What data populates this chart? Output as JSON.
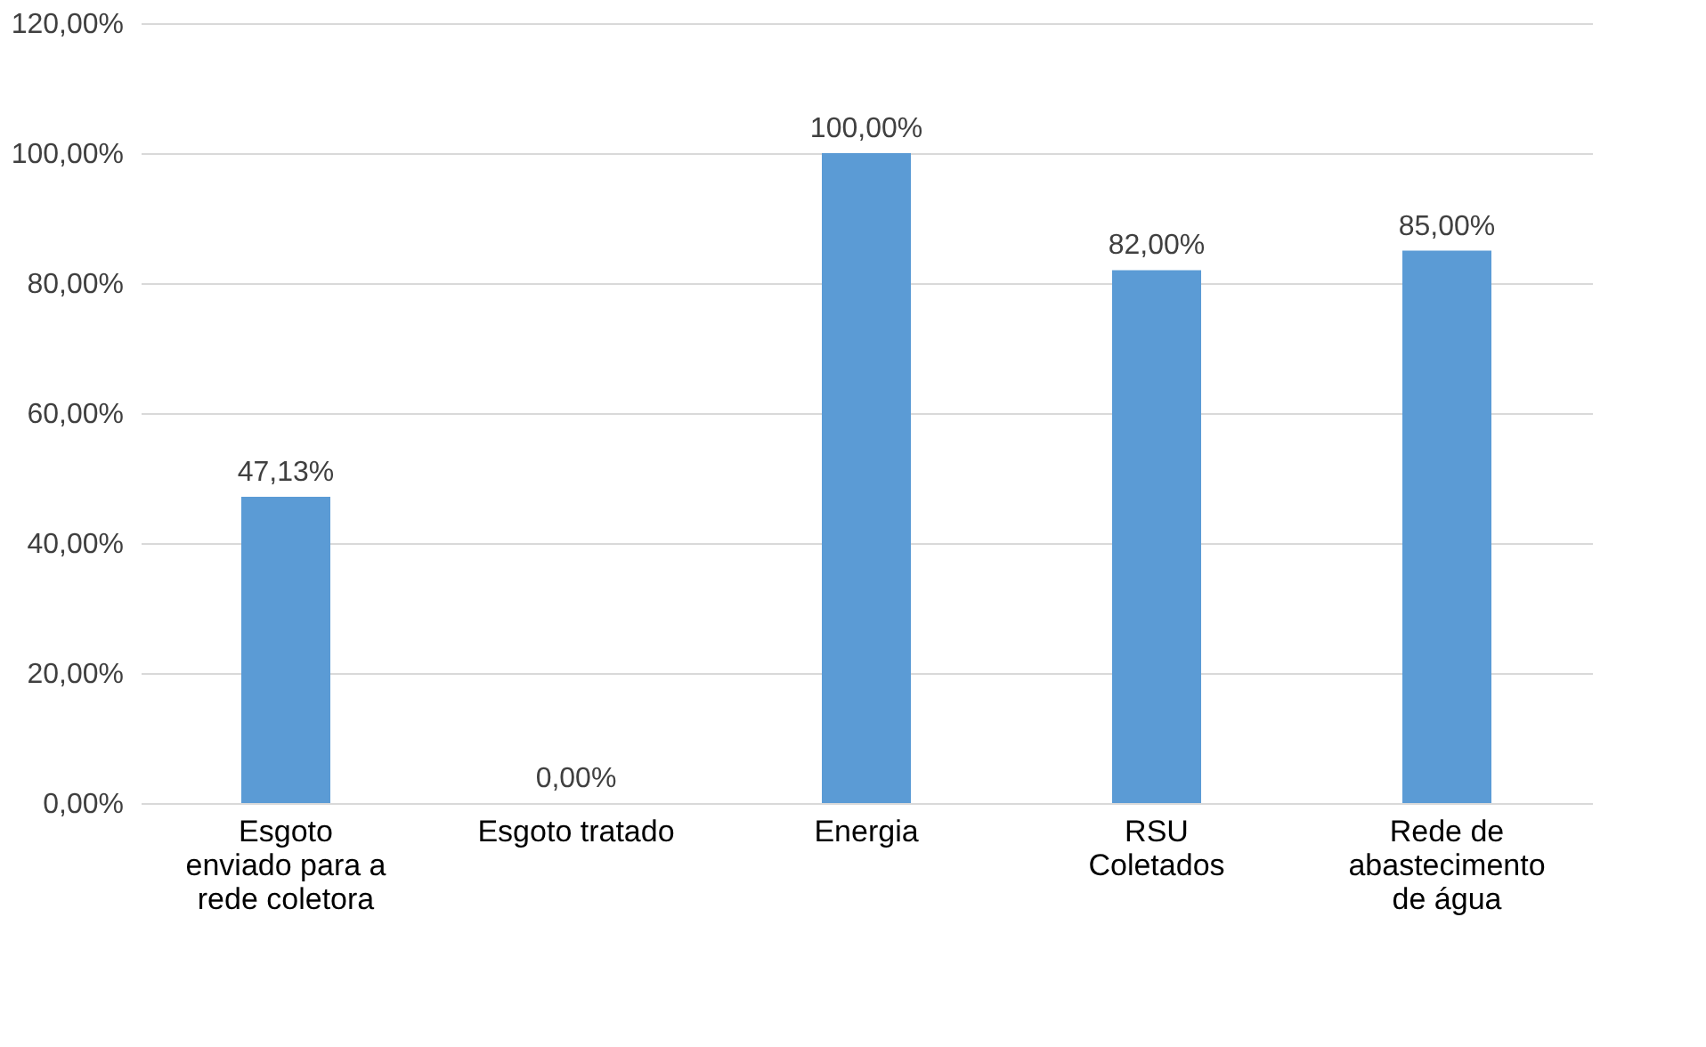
{
  "chart_data": {
    "type": "bar",
    "categories": [
      "Esgoto\nenviado para a\nrede coletora",
      "Esgoto tratado",
      "Energia",
      "RSU\nColetados",
      "Rede de\nabastecimento\nde água"
    ],
    "values": [
      47.13,
      0,
      100,
      82,
      85
    ],
    "value_labels": [
      "47,13%",
      "0,00%",
      "100,00%",
      "82,00%",
      "85,00%"
    ],
    "color": "#5b9bd5",
    "ylim": [
      0,
      120
    ],
    "yticks": [
      {
        "value": 0,
        "label": "0,00%"
      },
      {
        "value": 20,
        "label": "20,00%"
      },
      {
        "value": 40,
        "label": "40,00%"
      },
      {
        "value": 60,
        "label": "60,00%"
      },
      {
        "value": 80,
        "label": "80,00%"
      },
      {
        "value": 100,
        "label": "100,00%"
      },
      {
        "value": 120,
        "label": "120,00%"
      }
    ],
    "grid": "y"
  }
}
